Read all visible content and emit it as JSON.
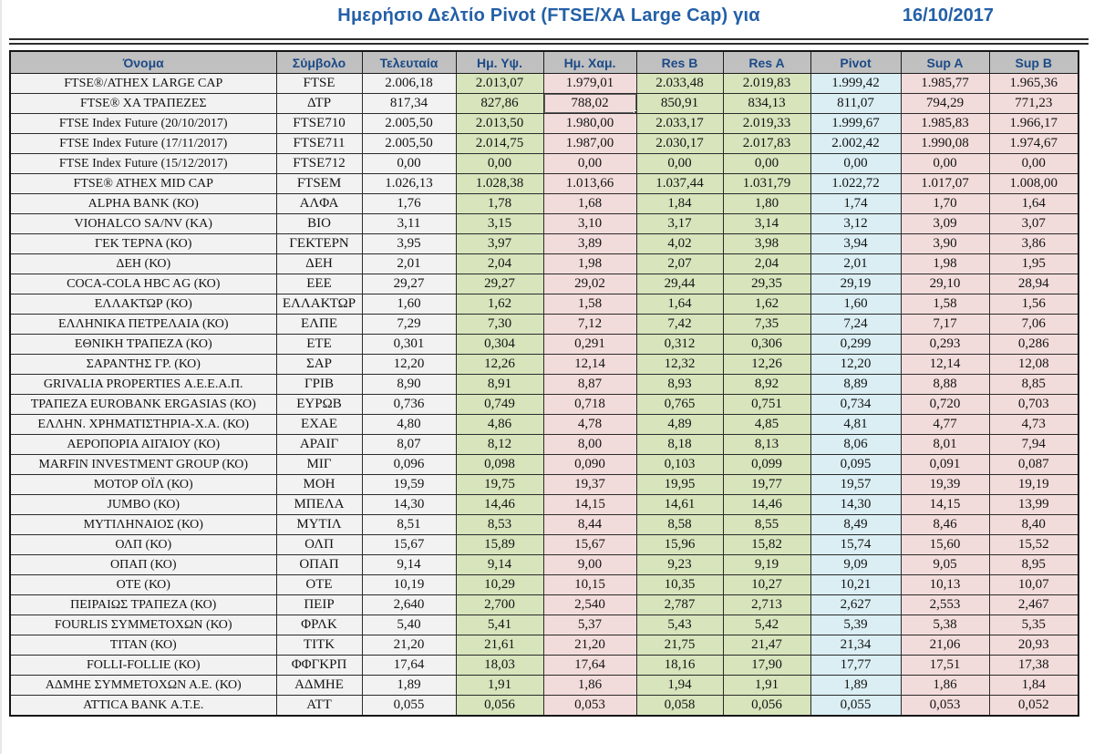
{
  "title": "Ημερήσιο Δελτίο Pivot (FTSE/ΧΑ Large Cap) για",
  "date": "16/10/2017",
  "colors": {
    "title_blue": "#2460a7",
    "header_text": "#1c4a86",
    "header_bg": "#c0c0c0",
    "plain_cell_bg": "#f2f2f2",
    "high_res_bg": "#d7e4bc",
    "low_sup_bg": "#f2dcdb",
    "pivot_bg": "#daeef3",
    "grid_border": "#2b2b2b"
  },
  "selection": {
    "row_index": 1,
    "column": "low"
  },
  "table": {
    "columns": [
      {
        "key": "name",
        "label": "Όνομα"
      },
      {
        "key": "symbol",
        "label": "Σύμβολο"
      },
      {
        "key": "last",
        "label": "Τελευταία"
      },
      {
        "key": "high",
        "label": "Ημ. Υψ."
      },
      {
        "key": "low",
        "label": "Ημ. Χαμ."
      },
      {
        "key": "res_b",
        "label": "Res B"
      },
      {
        "key": "res_a",
        "label": "Res A"
      },
      {
        "key": "pivot",
        "label": "Pivot"
      },
      {
        "key": "sup_a",
        "label": "Sup A"
      },
      {
        "key": "sup_b",
        "label": "Sup B"
      }
    ],
    "rows": [
      {
        "name": "FTSE®/ATHEX LARGE CAP",
        "symbol": "FTSE",
        "last": "2.006,18",
        "high": "2.013,07",
        "low": "1.979,01",
        "res_b": "2.033,48",
        "res_a": "2.019,83",
        "pivot": "1.999,42",
        "sup_a": "1.985,77",
        "sup_b": "1.965,36"
      },
      {
        "name": "FTSE® ΧΑ ΤΡΑΠΕΖΕΣ",
        "symbol": "ΔΤΡ",
        "last": "817,34",
        "high": "827,86",
        "low": "788,02",
        "res_b": "850,91",
        "res_a": "834,13",
        "pivot": "811,07",
        "sup_a": "794,29",
        "sup_b": "771,23"
      },
      {
        "name": "FTSE Index Future (20/10/2017)",
        "symbol": "FTSE710",
        "last": "2.005,50",
        "high": "2.013,50",
        "low": "1.980,00",
        "res_b": "2.033,17",
        "res_a": "2.019,33",
        "pivot": "1.999,67",
        "sup_a": "1.985,83",
        "sup_b": "1.966,17"
      },
      {
        "name": "FTSE Index Future (17/11/2017)",
        "symbol": "FTSE711",
        "last": "2.005,50",
        "high": "2.014,75",
        "low": "1.987,00",
        "res_b": "2.030,17",
        "res_a": "2.017,83",
        "pivot": "2.002,42",
        "sup_a": "1.990,08",
        "sup_b": "1.974,67"
      },
      {
        "name": "FTSE Index Future (15/12/2017)",
        "symbol": "FTSE712",
        "last": "0,00",
        "high": "0,00",
        "low": "0,00",
        "res_b": "0,00",
        "res_a": "0,00",
        "pivot": "0,00",
        "sup_a": "0,00",
        "sup_b": "0,00"
      },
      {
        "name": "FTSE® ATHEX MID CAP",
        "symbol": "FTSEM",
        "last": "1.026,13",
        "high": "1.028,38",
        "low": "1.013,66",
        "res_b": "1.037,44",
        "res_a": "1.031,79",
        "pivot": "1.022,72",
        "sup_a": "1.017,07",
        "sup_b": "1.008,00"
      },
      {
        "name": "ALPHA BANK (ΚΟ)",
        "symbol": "ΑΛΦΑ",
        "last": "1,76",
        "high": "1,78",
        "low": "1,68",
        "res_b": "1,84",
        "res_a": "1,80",
        "pivot": "1,74",
        "sup_a": "1,70",
        "sup_b": "1,64"
      },
      {
        "name": "VIOHALCO SA/NV (ΚΑ)",
        "symbol": "ΒΙΟ",
        "last": "3,11",
        "high": "3,15",
        "low": "3,10",
        "res_b": "3,17",
        "res_a": "3,14",
        "pivot": "3,12",
        "sup_a": "3,09",
        "sup_b": "3,07"
      },
      {
        "name": "ΓΕΚ ΤΕΡΝΑ (ΚΟ)",
        "symbol": "ΓΕΚΤΕΡΝ",
        "last": "3,95",
        "high": "3,97",
        "low": "3,89",
        "res_b": "4,02",
        "res_a": "3,98",
        "pivot": "3,94",
        "sup_a": "3,90",
        "sup_b": "3,86"
      },
      {
        "name": "ΔΕΗ (ΚΟ)",
        "symbol": "ΔΕΗ",
        "last": "2,01",
        "high": "2,04",
        "low": "1,98",
        "res_b": "2,07",
        "res_a": "2,04",
        "pivot": "2,01",
        "sup_a": "1,98",
        "sup_b": "1,95"
      },
      {
        "name": "COCA-COLA HBC AG (ΚΟ)",
        "symbol": "ΕΕΕ",
        "last": "29,27",
        "high": "29,27",
        "low": "29,02",
        "res_b": "29,44",
        "res_a": "29,35",
        "pivot": "29,19",
        "sup_a": "29,10",
        "sup_b": "28,94"
      },
      {
        "name": "ΕΛΛΑΚΤΩΡ (ΚΟ)",
        "symbol": "ΕΛΛΑΚΤΩΡ",
        "last": "1,60",
        "high": "1,62",
        "low": "1,58",
        "res_b": "1,64",
        "res_a": "1,62",
        "pivot": "1,60",
        "sup_a": "1,58",
        "sup_b": "1,56"
      },
      {
        "name": "ΕΛΛΗΝΙΚΑ ΠΕΤΡΕΛΑΙΑ (ΚΟ)",
        "symbol": "ΕΛΠΕ",
        "last": "7,29",
        "high": "7,30",
        "low": "7,12",
        "res_b": "7,42",
        "res_a": "7,35",
        "pivot": "7,24",
        "sup_a": "7,17",
        "sup_b": "7,06"
      },
      {
        "name": "ΕΘΝΙΚΗ ΤΡΑΠΕΖΑ (ΚΟ)",
        "symbol": "ΕΤΕ",
        "last": "0,301",
        "high": "0,304",
        "low": "0,291",
        "res_b": "0,312",
        "res_a": "0,306",
        "pivot": "0,299",
        "sup_a": "0,293",
        "sup_b": "0,286"
      },
      {
        "name": "ΣΑΡΑΝΤΗΣ ΓΡ. (ΚΟ)",
        "symbol": "ΣΑΡ",
        "last": "12,20",
        "high": "12,26",
        "low": "12,14",
        "res_b": "12,32",
        "res_a": "12,26",
        "pivot": "12,20",
        "sup_a": "12,14",
        "sup_b": "12,08"
      },
      {
        "name": "GRIVALIA PROPERTIES Α.Ε.Ε.Α.Π.",
        "symbol": "ΓΡΙΒ",
        "last": "8,90",
        "high": "8,91",
        "low": "8,87",
        "res_b": "8,93",
        "res_a": "8,92",
        "pivot": "8,89",
        "sup_a": "8,88",
        "sup_b": "8,85"
      },
      {
        "name": "ΤΡΑΠΕΖΑ EUROBANK ERGASIAS (ΚΟ)",
        "symbol": "ΕΥΡΩΒ",
        "last": "0,736",
        "high": "0,749",
        "low": "0,718",
        "res_b": "0,765",
        "res_a": "0,751",
        "pivot": "0,734",
        "sup_a": "0,720",
        "sup_b": "0,703"
      },
      {
        "name": "ΕΛΛΗΝ. ΧΡΗΜΑΤΙΣΤΗΡΙΑ-Χ.Α. (ΚΟ)",
        "symbol": "ΕΧΑΕ",
        "last": "4,80",
        "high": "4,86",
        "low": "4,78",
        "res_b": "4,89",
        "res_a": "4,85",
        "pivot": "4,81",
        "sup_a": "4,77",
        "sup_b": "4,73"
      },
      {
        "name": "ΑΕΡΟΠΟΡΙΑ ΑΙΓΑΙΟΥ (ΚΟ)",
        "symbol": "ΑΡΑΙΓ",
        "last": "8,07",
        "high": "8,12",
        "low": "8,00",
        "res_b": "8,18",
        "res_a": "8,13",
        "pivot": "8,06",
        "sup_a": "8,01",
        "sup_b": "7,94"
      },
      {
        "name": "MARFIN INVESTMENT GROUP  (ΚΟ)",
        "symbol": "ΜΙΓ",
        "last": "0,096",
        "high": "0,098",
        "low": "0,090",
        "res_b": "0,103",
        "res_a": "0,099",
        "pivot": "0,095",
        "sup_a": "0,091",
        "sup_b": "0,087"
      },
      {
        "name": "ΜΟΤΟΡ ΟΪΛ (ΚΟ)",
        "symbol": "ΜΟΗ",
        "last": "19,59",
        "high": "19,75",
        "low": "19,37",
        "res_b": "19,95",
        "res_a": "19,77",
        "pivot": "19,57",
        "sup_a": "19,39",
        "sup_b": "19,19"
      },
      {
        "name": "JUMBO (ΚΟ)",
        "symbol": "ΜΠΕΛΑ",
        "last": "14,30",
        "high": "14,46",
        "low": "14,15",
        "res_b": "14,61",
        "res_a": "14,46",
        "pivot": "14,30",
        "sup_a": "14,15",
        "sup_b": "13,99"
      },
      {
        "name": "ΜΥΤΙΛΗΝΑΙΟΣ (ΚΟ)",
        "symbol": "ΜΥΤΙΛ",
        "last": "8,51",
        "high": "8,53",
        "low": "8,44",
        "res_b": "8,58",
        "res_a": "8,55",
        "pivot": "8,49",
        "sup_a": "8,46",
        "sup_b": "8,40"
      },
      {
        "name": "ΟΛΠ (ΚΟ)",
        "symbol": "ΟΛΠ",
        "last": "15,67",
        "high": "15,89",
        "low": "15,67",
        "res_b": "15,96",
        "res_a": "15,82",
        "pivot": "15,74",
        "sup_a": "15,60",
        "sup_b": "15,52"
      },
      {
        "name": "ΟΠΑΠ (ΚΟ)",
        "symbol": "ΟΠΑΠ",
        "last": "9,14",
        "high": "9,14",
        "low": "9,00",
        "res_b": "9,23",
        "res_a": "9,19",
        "pivot": "9,09",
        "sup_a": "9,05",
        "sup_b": "8,95"
      },
      {
        "name": "ΟΤΕ  (ΚΟ)",
        "symbol": "ΟΤΕ",
        "last": "10,19",
        "high": "10,29",
        "low": "10,15",
        "res_b": "10,35",
        "res_a": "10,27",
        "pivot": "10,21",
        "sup_a": "10,13",
        "sup_b": "10,07"
      },
      {
        "name": "ΠΕΙΡΑΙΩΣ ΤΡΑΠΕΖΑ (ΚΟ)",
        "symbol": "ΠΕΙΡ",
        "last": "2,640",
        "high": "2,700",
        "low": "2,540",
        "res_b": "2,787",
        "res_a": "2,713",
        "pivot": "2,627",
        "sup_a": "2,553",
        "sup_b": "2,467"
      },
      {
        "name": "FOURLIS ΣΥΜΜΕΤΟΧΩΝ (ΚΟ)",
        "symbol": "ΦΡΛΚ",
        "last": "5,40",
        "high": "5,41",
        "low": "5,37",
        "res_b": "5,43",
        "res_a": "5,42",
        "pivot": "5,39",
        "sup_a": "5,38",
        "sup_b": "5,35"
      },
      {
        "name": "ΤΙΤΑΝ (ΚΟ)",
        "symbol": "ΤΙΤΚ",
        "last": "21,20",
        "high": "21,61",
        "low": "21,20",
        "res_b": "21,75",
        "res_a": "21,47",
        "pivot": "21,34",
        "sup_a": "21,06",
        "sup_b": "20,93"
      },
      {
        "name": "FOLLI-FOLLIE (ΚΟ)",
        "symbol": "ΦΦΓΚΡΠ",
        "last": "17,64",
        "high": "18,03",
        "low": "17,64",
        "res_b": "18,16",
        "res_a": "17,90",
        "pivot": "17,77",
        "sup_a": "17,51",
        "sup_b": "17,38"
      },
      {
        "name": "ΑΔΜΗΕ ΣΥΜΜΕΤΟΧΩΝ Α.Ε. (ΚΟ)",
        "symbol": "ΑΔΜΗΕ",
        "last": "1,89",
        "high": "1,91",
        "low": "1,86",
        "res_b": "1,94",
        "res_a": "1,91",
        "pivot": "1,89",
        "sup_a": "1,86",
        "sup_b": "1,84"
      },
      {
        "name": "ATTICA BANK Α.Τ.Ε.",
        "symbol": "ΑΤΤ",
        "last": "0,055",
        "high": "0,056",
        "low": "0,053",
        "res_b": "0,058",
        "res_a": "0,056",
        "pivot": "0,055",
        "sup_a": "0,053",
        "sup_b": "0,052"
      }
    ]
  }
}
